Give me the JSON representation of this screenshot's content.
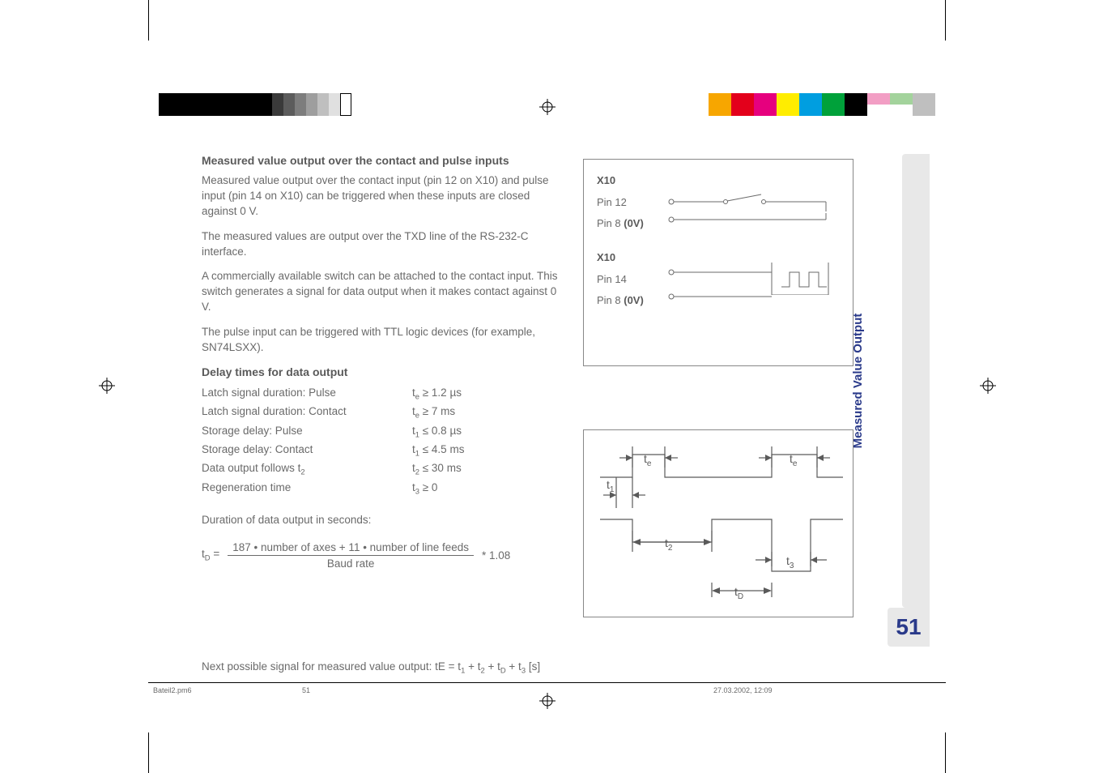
{
  "colorbar_left": {
    "blacks": [
      "#000000",
      "#000000",
      "#000000",
      "#000000",
      "#000000"
    ],
    "grays": [
      "#3a3a3a",
      "#5c5c5c",
      "#7d7d7d",
      "#9e9e9e",
      "#bfbfbf",
      "#e0e0e0",
      "#ffffff"
    ]
  },
  "colorbar_right": {
    "colors": [
      "#f7a600",
      "#e3001b",
      "#e6007e",
      "#ffed00",
      "#009ee0",
      "#00a13a",
      "#000000",
      "#f29ec4",
      "#a3d39c",
      "#bfbfbf"
    ]
  },
  "content": {
    "h1": "Measured value output over the contact and pulse inputs",
    "p1": "Measured value output over the contact input (pin 12 on X10) and pulse input (pin 14 on X10) can be triggered when these inputs are closed against 0 V.",
    "p2": "The measured values are output over the TXD line of the RS-232-C interface.",
    "p3": "A commercially available switch can be attached to the contact input. This switch generates a signal for data output when it makes contact against 0 V.",
    "p4": "The pulse input can be triggered with TTL logic devices (for example, SN74LSXX).",
    "h2": "Delay times for data output",
    "delay": [
      {
        "label": "Latch signal duration: Pulse",
        "sym": "t",
        "sub": "e",
        "op": "≥",
        "val": "1.2 µs"
      },
      {
        "label": "Latch signal duration: Contact",
        "sym": "t",
        "sub": "e",
        "op": "≥",
        "val": "7 ms"
      },
      {
        "label": "Storage delay: Pulse",
        "sym": "t",
        "sub": "1",
        "op": "≤",
        "val": "0.8 µs"
      },
      {
        "label": "Storage delay: Contact",
        "sym": "t",
        "sub": "1",
        "op": "≤",
        "val": "4.5 ms"
      },
      {
        "label": "Data output follows t",
        "label_sub": "2",
        "sym": "t",
        "sub": "2",
        "op": "≤",
        "val": "30 ms"
      },
      {
        "label": "Regeneration  time",
        "sym": "t",
        "sub": "3",
        "op": "≥",
        "val": "0"
      }
    ],
    "duration_label": "Duration of data output in seconds:",
    "formula": {
      "lhs_sym": "t",
      "lhs_sub": "D",
      "eq": "=",
      "num": "187 •  number of axes + 11 • number of line feeds",
      "den": "Baud rate",
      "tail": "*  1.08"
    },
    "next_line_prefix": "Next possible signal for measured value output:  tE = t",
    "next_line_rest": " + t",
    "next_line_subs": [
      "1",
      "2",
      "D",
      "3"
    ],
    "next_line_suffix": " [s]"
  },
  "diagram": {
    "group1": {
      "title": "X10",
      "pin_a": "Pin 12",
      "pin_b": "Pin 8 ",
      "pin_b_bold": "(0V)"
    },
    "group2": {
      "title": "X10",
      "pin_a": "Pin 14",
      "pin_b": "Pin 8 ",
      "pin_b_bold": "(0V)"
    }
  },
  "timing_labels": {
    "te": "t",
    "te_sub": "e",
    "t1": "t",
    "t1_sub": "1",
    "t2": "t",
    "t2_sub": "2",
    "t3": "t",
    "t3_sub": "3",
    "tD": "t",
    "tD_sub": "D"
  },
  "side_tab": "Measured Value Output",
  "page_number": "51",
  "footer": {
    "file": "Bateil2.pm6",
    "page": "51",
    "date": "27.03.2002, 12:09"
  }
}
